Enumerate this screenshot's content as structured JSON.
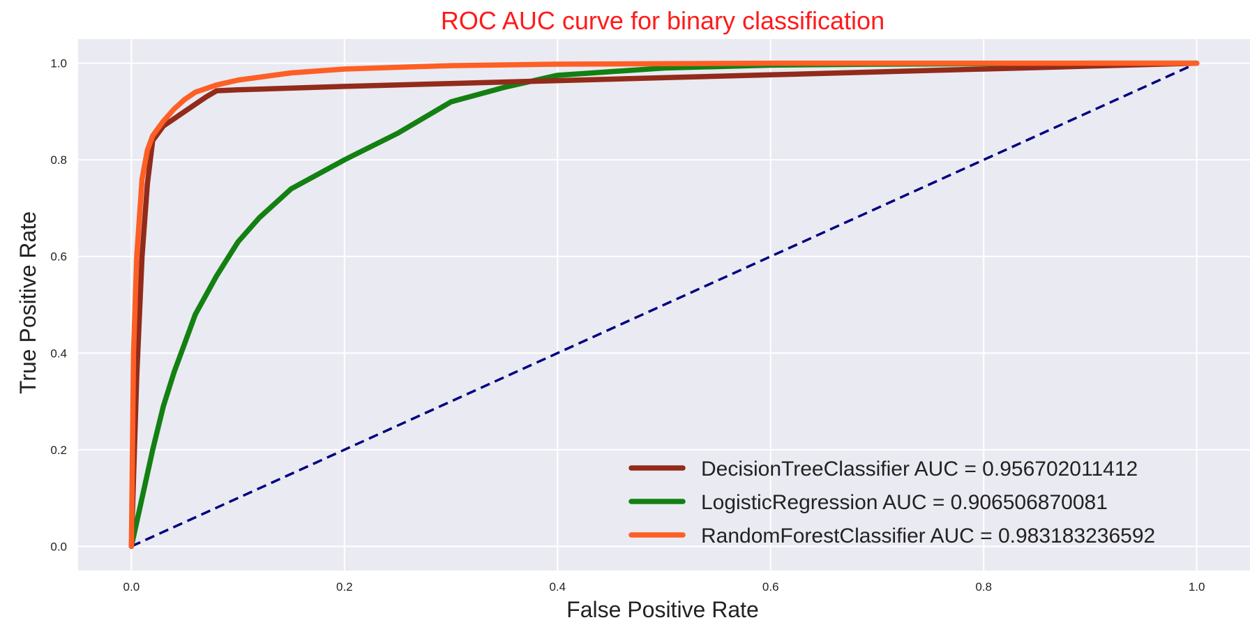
{
  "chart_data": {
    "type": "line",
    "title": "ROC AUC curve for binary classification",
    "title_color": "#ff1a1a",
    "xlabel": "False Positive Rate",
    "ylabel": "True Positive Rate",
    "xlim": [
      -0.05,
      1.05
    ],
    "ylim": [
      -0.05,
      1.05
    ],
    "xticks": [
      "0.0",
      "0.2",
      "0.4",
      "0.6",
      "0.8",
      "1.0"
    ],
    "yticks": [
      "0.0",
      "0.2",
      "0.4",
      "0.6",
      "0.8",
      "1.0"
    ],
    "grid": true,
    "background_color": "#eaeaf2",
    "legend_position": "lower-right",
    "series": [
      {
        "name": "DecisionTreeClassifier AUC = 0.956702011412",
        "color": "#922b1a",
        "x": [
          0.0,
          0.005,
          0.01,
          0.015,
          0.02,
          0.03,
          0.05,
          0.06,
          0.07,
          0.08,
          0.1,
          0.2,
          0.3,
          0.4,
          0.5,
          0.6,
          0.7,
          0.8,
          0.9,
          1.0
        ],
        "y": [
          0.0,
          0.35,
          0.6,
          0.75,
          0.84,
          0.87,
          0.9,
          0.915,
          0.93,
          0.943,
          0.945,
          0.952,
          0.958,
          0.964,
          0.97,
          0.976,
          0.982,
          0.988,
          0.994,
          1.0
        ]
      },
      {
        "name": "LogisticRegression AUC = 0.906506870081",
        "color": "#138012",
        "x": [
          0.0,
          0.005,
          0.01,
          0.02,
          0.03,
          0.04,
          0.05,
          0.06,
          0.08,
          0.1,
          0.12,
          0.15,
          0.2,
          0.25,
          0.3,
          0.35,
          0.4,
          0.5,
          0.6,
          0.7,
          0.8,
          0.9,
          1.0
        ],
        "y": [
          0.0,
          0.05,
          0.1,
          0.2,
          0.29,
          0.36,
          0.42,
          0.48,
          0.56,
          0.63,
          0.68,
          0.74,
          0.8,
          0.855,
          0.92,
          0.95,
          0.975,
          0.99,
          0.996,
          0.998,
          0.999,
          1.0,
          1.0
        ]
      },
      {
        "name": "RandomForestClassifier AUC = 0.983183236592",
        "color": "#fd5f25",
        "x": [
          0.0,
          0.002,
          0.005,
          0.01,
          0.015,
          0.02,
          0.03,
          0.04,
          0.05,
          0.06,
          0.08,
          0.1,
          0.15,
          0.2,
          0.3,
          0.4,
          0.6,
          0.8,
          1.0
        ],
        "y": [
          0.0,
          0.4,
          0.6,
          0.76,
          0.82,
          0.85,
          0.88,
          0.905,
          0.925,
          0.94,
          0.955,
          0.965,
          0.98,
          0.988,
          0.995,
          0.998,
          1.0,
          1.0,
          1.0
        ]
      },
      {
        "name": "",
        "color": "#000080",
        "dashed": true,
        "x": [
          0.0,
          1.0
        ],
        "y": [
          0.0,
          1.0
        ]
      }
    ]
  }
}
